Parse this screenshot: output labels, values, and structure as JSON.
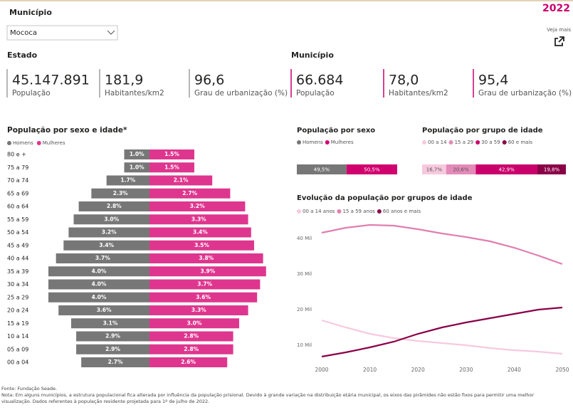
{
  "filter": {
    "label": "Município",
    "value": "Mococa"
  },
  "year": "2022",
  "link": "Veja mais",
  "sections": [
    {
      "title": "Estado",
      "kpis": [
        {
          "value": "45.147.891",
          "label": "População"
        },
        {
          "value": "181,9",
          "label": "Habitantes/km2"
        },
        {
          "value": "96,6",
          "label": "Grau de urbanização (%)"
        }
      ]
    },
    {
      "title": "Município",
      "kpis": [
        {
          "value": "66.684",
          "label": "População"
        },
        {
          "value": "78,0",
          "label": "Habitantes/km2"
        },
        {
          "value": "95,4",
          "label": "Grau de urbanização (%)"
        }
      ]
    }
  ],
  "chart_data": [
    {
      "type": "pyramid",
      "title": "População por sexo e idade*",
      "categories": [
        "80 e +",
        "75 a 79",
        "70 a 74",
        "65 a 69",
        "60 a 64",
        "55 a 59",
        "50 a 54",
        "45 a 49",
        "40 a 44",
        "35 a 39",
        "30 a 34",
        "25 a 29",
        "20 a 24",
        "15 a 19",
        "10 a 14",
        "05 a 09",
        "00 a 04"
      ],
      "series": [
        {
          "name": "Homens",
          "color": "#777777",
          "values": [
            1.0,
            1.0,
            1.7,
            2.3,
            2.8,
            3.0,
            3.2,
            3.4,
            3.7,
            4.0,
            4.0,
            4.0,
            3.6,
            3.1,
            2.9,
            2.9,
            2.7
          ],
          "value_labels": [
            "1.0%",
            "1.0%",
            "1.7%",
            "2.3%",
            "2.8%",
            "3.0%",
            "3.2%",
            "3.4%",
            "3.7%",
            "4.0%",
            "4.0%",
            "4.0%",
            "3.6%",
            "3.1%",
            "2.9%",
            "2.9%",
            "2.7%"
          ]
        },
        {
          "name": "Mulheres",
          "color": "#de368e",
          "values": [
            1.5,
            1.5,
            2.1,
            2.7,
            3.2,
            3.3,
            3.4,
            3.5,
            3.8,
            3.9,
            3.7,
            3.6,
            3.3,
            3.0,
            2.8,
            2.8,
            2.6
          ],
          "value_labels": [
            "1.5%",
            "1.5%",
            "2.1%",
            "2.7%",
            "3.2%",
            "3.3%",
            "3.4%",
            "3.5%",
            "3.8%",
            "3.9%",
            "3.7%",
            "3.6%",
            "3.3%",
            "3.0%",
            "2.8%",
            "2.8%",
            "2.6%"
          ]
        }
      ]
    },
    {
      "type": "stackedbar",
      "title": "População por sexo",
      "series": [
        {
          "name": "Homens",
          "color": "#777777",
          "values": [
            49.5
          ],
          "value_labels": [
            "49,5%"
          ]
        },
        {
          "name": "Mulheres",
          "color": "#d0006f",
          "values": [
            50.5
          ],
          "value_labels": [
            "50,5%"
          ]
        }
      ]
    },
    {
      "type": "stackedbar",
      "title": "População por grupo de idade",
      "series": [
        {
          "name": "00 a 14",
          "color": "#f7c9de",
          "values": [
            16.7
          ],
          "value_labels": [
            "16,7%"
          ]
        },
        {
          "name": "15 a 29",
          "color": "#e48ab8",
          "values": [
            20.6
          ],
          "value_labels": [
            "20,6%"
          ]
        },
        {
          "name": "30 a 59",
          "color": "#c9006c",
          "values": [
            42.9
          ],
          "value_labels": [
            "42,9%"
          ]
        },
        {
          "name": "60 e mais",
          "color": "#8a0047",
          "values": [
            19.8
          ],
          "value_labels": [
            "19,8%"
          ]
        }
      ]
    },
    {
      "type": "line",
      "title": "Evolução da população por grupos de idade",
      "x": [
        2000,
        2005,
        2010,
        2015,
        2020,
        2025,
        2030,
        2035,
        2040,
        2045,
        2050
      ],
      "xlim": [
        2000,
        2050
      ],
      "xticks": [
        2000,
        2010,
        2020,
        2030,
        2040,
        2050
      ],
      "ylim": [
        5000,
        46000
      ],
      "yticks": [
        {
          "value": 10000,
          "label": "10 Mil"
        },
        {
          "value": 20000,
          "label": "20 Mil"
        },
        {
          "value": 30000,
          "label": "30 Mil"
        },
        {
          "value": 40000,
          "label": "40 Mil"
        }
      ],
      "series": [
        {
          "name": "00 a 14 anos",
          "color": "#f7c9de",
          "values": [
            17000,
            15000,
            13200,
            12000,
            11200,
            10600,
            10000,
            9200,
            8600,
            8200,
            7600
          ]
        },
        {
          "name": "15 a 59 anos",
          "color": "#e07fb0",
          "values": [
            41600,
            43000,
            43800,
            43600,
            42600,
            41400,
            40400,
            39200,
            37400,
            35200,
            32800
          ]
        },
        {
          "name": "60 anos e mais",
          "color": "#8a0047",
          "values": [
            6800,
            8000,
            9400,
            11000,
            13200,
            15000,
            16400,
            17600,
            18800,
            20000,
            20600
          ]
        }
      ]
    }
  ],
  "footer": {
    "source": "Fonte: Fundação Seade.",
    "note": "Nota: Em alguns municípios, a estrutura populacional fica alterada por influência da população prisional. Devido à grande variação na distribuição etária municipal, os eixos das pirâmides não estão fixos para permitir uma melhor visualização. Dados referentes à população residente projetada para 1º de julho de 2022."
  }
}
